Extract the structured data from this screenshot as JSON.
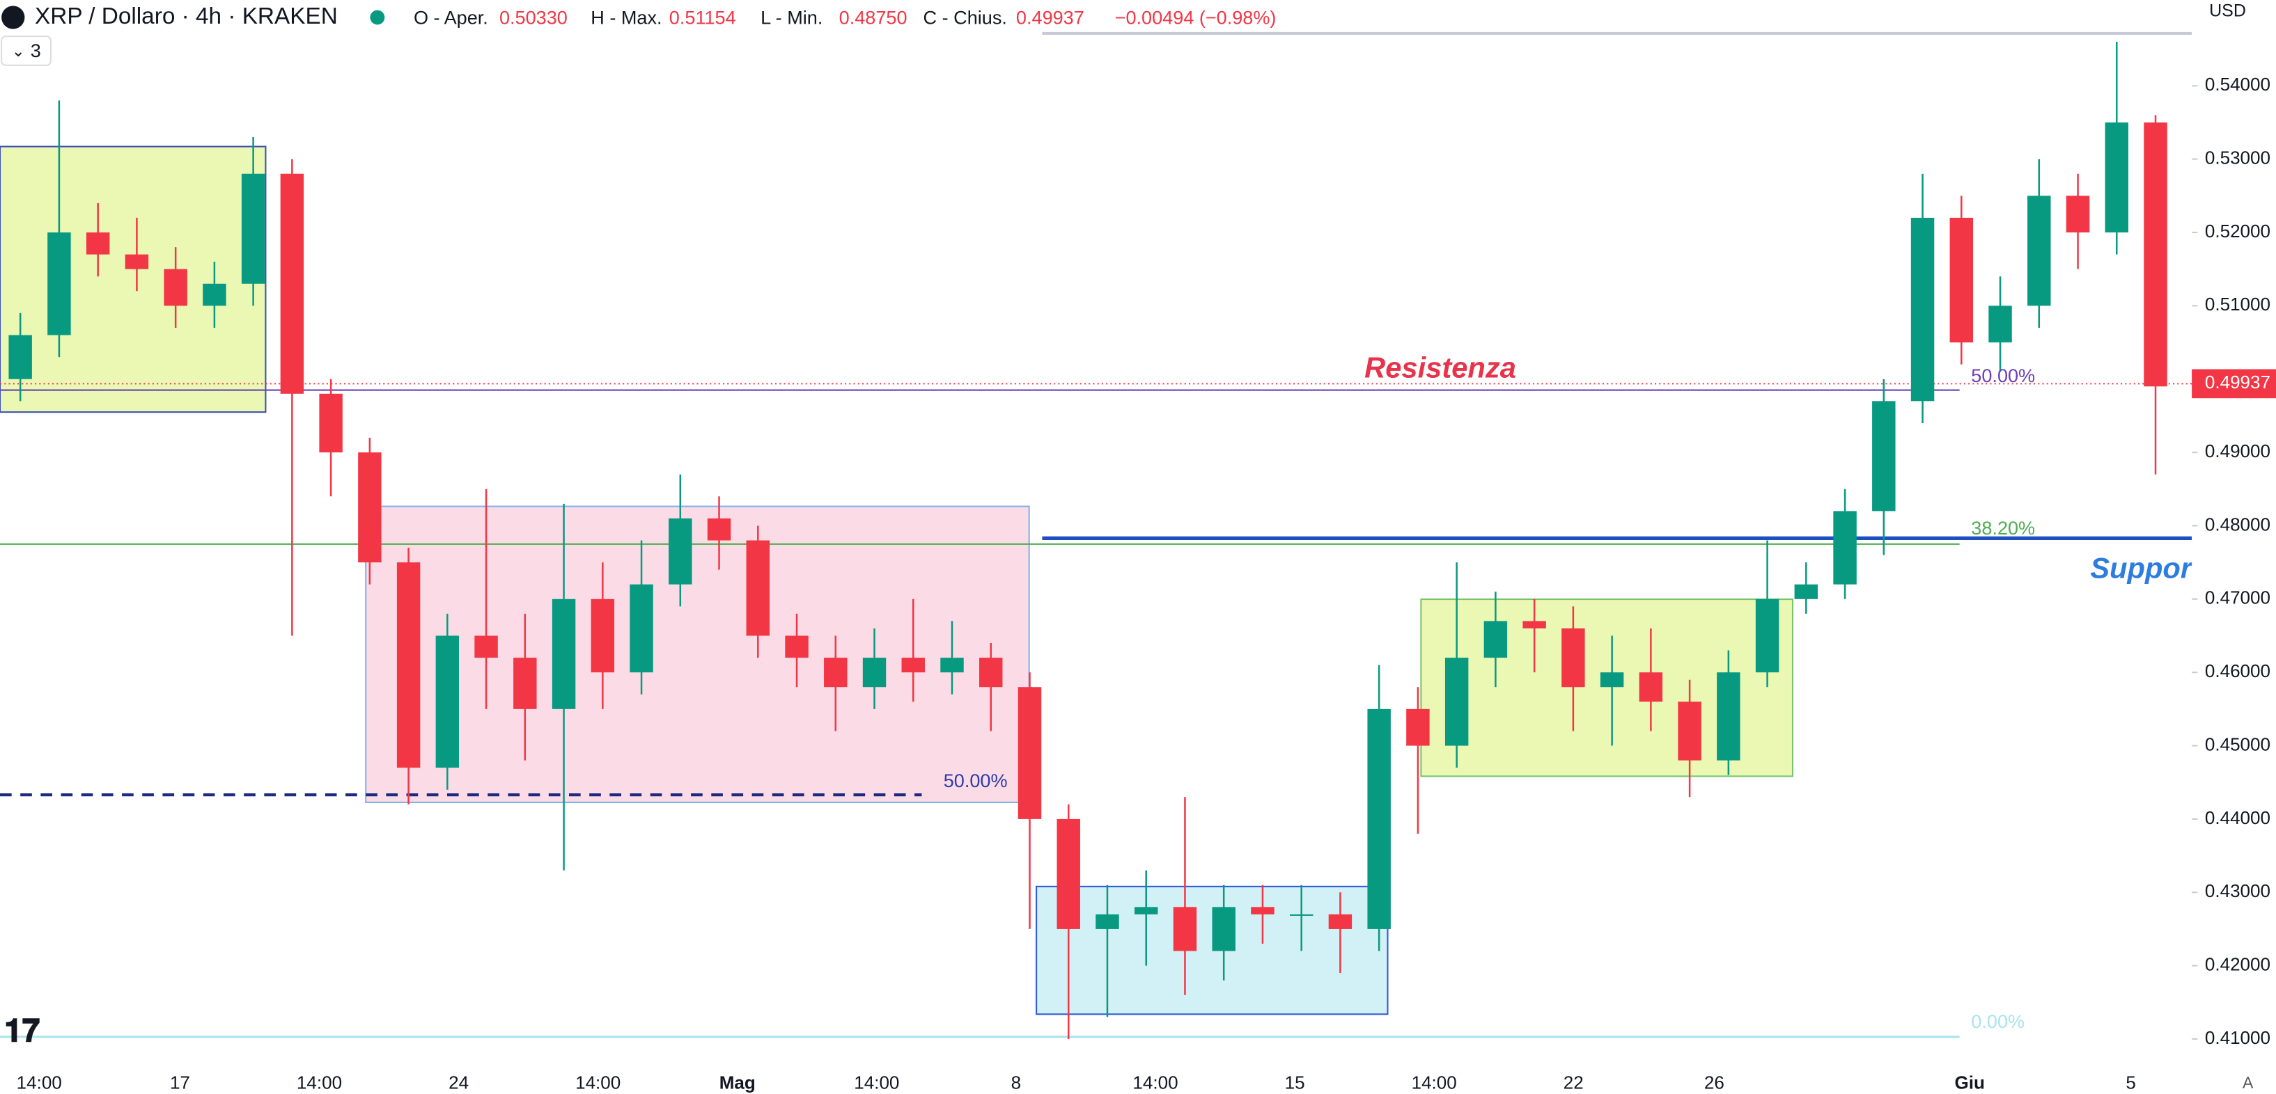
{
  "header": {
    "symbol": "XRP / Dollaro · 4h · KRAKEN",
    "open_label": "O - Aper.",
    "open": "0.50330",
    "high_label": "H - Max.",
    "high": "0.51154",
    "low_label": "L - Min.",
    "low": "0.48750",
    "close_label": "C - Chius.",
    "close": "0.49937",
    "change": "−0.00494 (−0.98%)",
    "indicators_count": "3"
  },
  "price_axis": {
    "currency": "USD",
    "ylim": [
      0.4025,
      0.5517
    ],
    "yticks": [
      {
        "value": 0.54,
        "label": "0.54000"
      },
      {
        "value": 0.53,
        "label": "0.53000"
      },
      {
        "value": 0.52,
        "label": "0.52000"
      },
      {
        "value": 0.51,
        "label": "0.51000"
      },
      {
        "value": 0.49,
        "label": "0.49000"
      },
      {
        "value": 0.48,
        "label": "0.48000"
      },
      {
        "value": 0.47,
        "label": "0.47000"
      },
      {
        "value": 0.46,
        "label": "0.46000"
      },
      {
        "value": 0.45,
        "label": "0.45000"
      },
      {
        "value": 0.44,
        "label": "0.44000"
      },
      {
        "value": 0.43,
        "label": "0.43000"
      },
      {
        "value": 0.42,
        "label": "0.42000"
      },
      {
        "value": 0.41,
        "label": "0.41000"
      }
    ],
    "last_price": {
      "value": 0.49937,
      "label": "0.49937"
    },
    "auto": "A"
  },
  "time_axis": [
    "14:00",
    "17",
    "14:00",
    "24",
    "14:00",
    "Mag",
    "14:00",
    "8",
    "14:00",
    "15",
    "14:00",
    "22",
    "26",
    "Giu",
    "5"
  ],
  "annotations": {
    "resistance": "Resistenza",
    "support": "Suppor",
    "fib_50": "50.00%",
    "fib_382": "38.20%",
    "fib_0": "0.00%",
    "box_50": "50.00%"
  },
  "levels": {
    "fib_50": 0.4985,
    "fib_382": 0.4775,
    "fib_0": 0.4103,
    "support": 0.4783,
    "dashed": 0.4433
  },
  "candles": [
    [
      0.5,
      0.509,
      0.497,
      0.506
    ],
    [
      0.506,
      0.538,
      0.503,
      0.52
    ],
    [
      0.52,
      0.524,
      0.514,
      0.517
    ],
    [
      0.517,
      0.522,
      0.512,
      0.515
    ],
    [
      0.515,
      0.518,
      0.507,
      0.51
    ],
    [
      0.51,
      0.516,
      0.507,
      0.513
    ],
    [
      0.513,
      0.533,
      0.51,
      0.528
    ],
    [
      0.528,
      0.53,
      0.465,
      0.498
    ],
    [
      0.498,
      0.5,
      0.484,
      0.49
    ],
    [
      0.49,
      0.492,
      0.472,
      0.475
    ],
    [
      0.475,
      0.477,
      0.442,
      0.447
    ],
    [
      0.447,
      0.468,
      0.444,
      0.465
    ],
    [
      0.465,
      0.485,
      0.455,
      0.462
    ],
    [
      0.462,
      0.468,
      0.448,
      0.455
    ],
    [
      0.455,
      0.483,
      0.433,
      0.47
    ],
    [
      0.47,
      0.475,
      0.455,
      0.46
    ],
    [
      0.46,
      0.478,
      0.457,
      0.472
    ],
    [
      0.472,
      0.487,
      0.469,
      0.481
    ],
    [
      0.481,
      0.484,
      0.474,
      0.478
    ],
    [
      0.478,
      0.48,
      0.462,
      0.465
    ],
    [
      0.465,
      0.468,
      0.458,
      0.462
    ],
    [
      0.462,
      0.465,
      0.452,
      0.458
    ],
    [
      0.458,
      0.466,
      0.455,
      0.462
    ],
    [
      0.462,
      0.47,
      0.456,
      0.46
    ],
    [
      0.46,
      0.467,
      0.457,
      0.462
    ],
    [
      0.462,
      0.464,
      0.452,
      0.458
    ],
    [
      0.458,
      0.46,
      0.425,
      0.44
    ],
    [
      0.44,
      0.442,
      0.41,
      0.425
    ],
    [
      0.425,
      0.431,
      0.413,
      0.427
    ],
    [
      0.427,
      0.433,
      0.42,
      0.428
    ],
    [
      0.428,
      0.443,
      0.416,
      0.422
    ],
    [
      0.422,
      0.431,
      0.418,
      0.428
    ],
    [
      0.428,
      0.431,
      0.423,
      0.427
    ],
    [
      0.427,
      0.431,
      0.422,
      0.427
    ],
    [
      0.427,
      0.43,
      0.419,
      0.425
    ],
    [
      0.425,
      0.461,
      0.422,
      0.455
    ],
    [
      0.455,
      0.458,
      0.438,
      0.45
    ],
    [
      0.45,
      0.475,
      0.447,
      0.462
    ],
    [
      0.462,
      0.471,
      0.458,
      0.467
    ],
    [
      0.467,
      0.47,
      0.46,
      0.466
    ],
    [
      0.466,
      0.469,
      0.452,
      0.458
    ],
    [
      0.458,
      0.465,
      0.45,
      0.46
    ],
    [
      0.46,
      0.466,
      0.452,
      0.456
    ],
    [
      0.456,
      0.459,
      0.443,
      0.448
    ],
    [
      0.448,
      0.463,
      0.446,
      0.46
    ],
    [
      0.46,
      0.478,
      0.458,
      0.47
    ],
    [
      0.47,
      0.475,
      0.468,
      0.472
    ],
    [
      0.472,
      0.485,
      0.47,
      0.482
    ],
    [
      0.482,
      0.5,
      0.476,
      0.497
    ],
    [
      0.497,
      0.528,
      0.494,
      0.522
    ],
    [
      0.522,
      0.525,
      0.502,
      0.505
    ],
    [
      0.505,
      0.514,
      0.501,
      0.51
    ],
    [
      0.51,
      0.53,
      0.507,
      0.525
    ],
    [
      0.525,
      0.528,
      0.515,
      0.52
    ],
    [
      0.52,
      0.546,
      0.517,
      0.535
    ],
    [
      0.535,
      0.536,
      0.487,
      0.499
    ]
  ]
}
